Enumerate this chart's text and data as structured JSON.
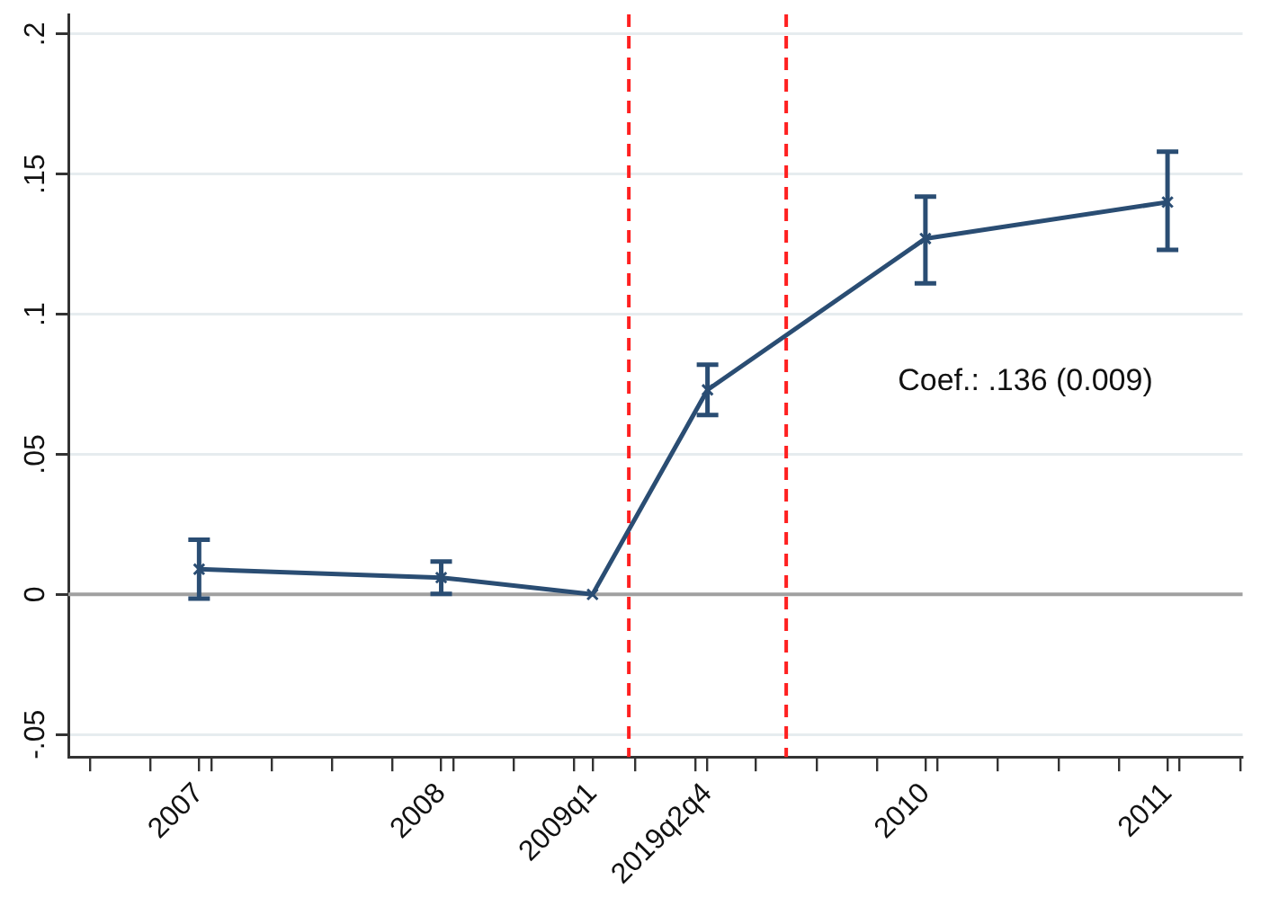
{
  "chart_data": {
    "type": "line",
    "series": [
      {
        "color": "#2a4d73",
        "x": [
          2007,
          2008,
          2008.625,
          2009.1,
          2010,
          2011
        ],
        "values": [
          0.009,
          0.006,
          0,
          0.073,
          0.127,
          0.14
        ],
        "errors": [
          [
            -0.0015,
            0.0195
          ],
          [
            0.0002,
            0.0117
          ],
          null,
          [
            0.064,
            0.082
          ],
          [
            0.111,
            0.142
          ],
          [
            0.123,
            0.158
          ]
        ]
      }
    ],
    "xlim": [
      2006.46,
      2011.31
    ],
    "xticks": [
      {
        "value": 2006.55,
        "label": null
      },
      {
        "value": 2006.8,
        "label": null
      },
      2007,
      {
        "value": 2007.05,
        "label": null
      },
      {
        "value": 2007.3,
        "label": null
      },
      {
        "value": 2007.55,
        "label": null
      },
      {
        "value": 2007.8,
        "label": null
      },
      2008,
      {
        "value": 2008.05,
        "label": null
      },
      {
        "value": 2008.3,
        "label": null
      },
      {
        "value": 2008.55,
        "label": null
      },
      {
        "value": 2008.625,
        "label": "2009q1"
      },
      {
        "value": 2008.8,
        "label": null
      },
      {
        "value": 2009.05,
        "label": null
      },
      {
        "value": 2009.1,
        "label": "2019q2q4"
      },
      {
        "value": 2009.3,
        "label": null
      },
      {
        "value": 2009.55,
        "label": null
      },
      {
        "value": 2009.8,
        "label": null
      },
      2010,
      {
        "value": 2010.05,
        "label": null
      },
      {
        "value": 2010.3,
        "label": null
      },
      {
        "value": 2010.55,
        "label": null
      },
      {
        "value": 2010.8,
        "label": null
      },
      2011,
      {
        "value": 2011.05,
        "label": null
      },
      {
        "value": 2011.3,
        "label": null
      }
    ],
    "ylim": [
      -0.058,
      0.207
    ],
    "yticks": [
      {
        "value": -0.05,
        "label": "-.05"
      },
      {
        "value": 0,
        "label": "0"
      },
      {
        "value": 0.05,
        "label": ".05"
      },
      {
        "value": 0.1,
        "label": ".1"
      },
      {
        "value": 0.15,
        "label": ".15"
      },
      {
        "value": 0.2,
        "label": ".2"
      }
    ],
    "grid": "y",
    "marker": "cross",
    "line_style": "solid",
    "ref_lines": [
      {
        "axis": "y",
        "value": 0,
        "color": "#a0a0a0",
        "line_style": "solid"
      },
      {
        "axis": "x",
        "value": 2008.775,
        "color": "#ff2020",
        "line_style": "dashed"
      },
      {
        "axis": "x",
        "value": 2009.425,
        "color": "#ff2020",
        "line_style": "dashed"
      }
    ],
    "annotations": [
      "Coef.: .136 (0.009)"
    ]
  }
}
